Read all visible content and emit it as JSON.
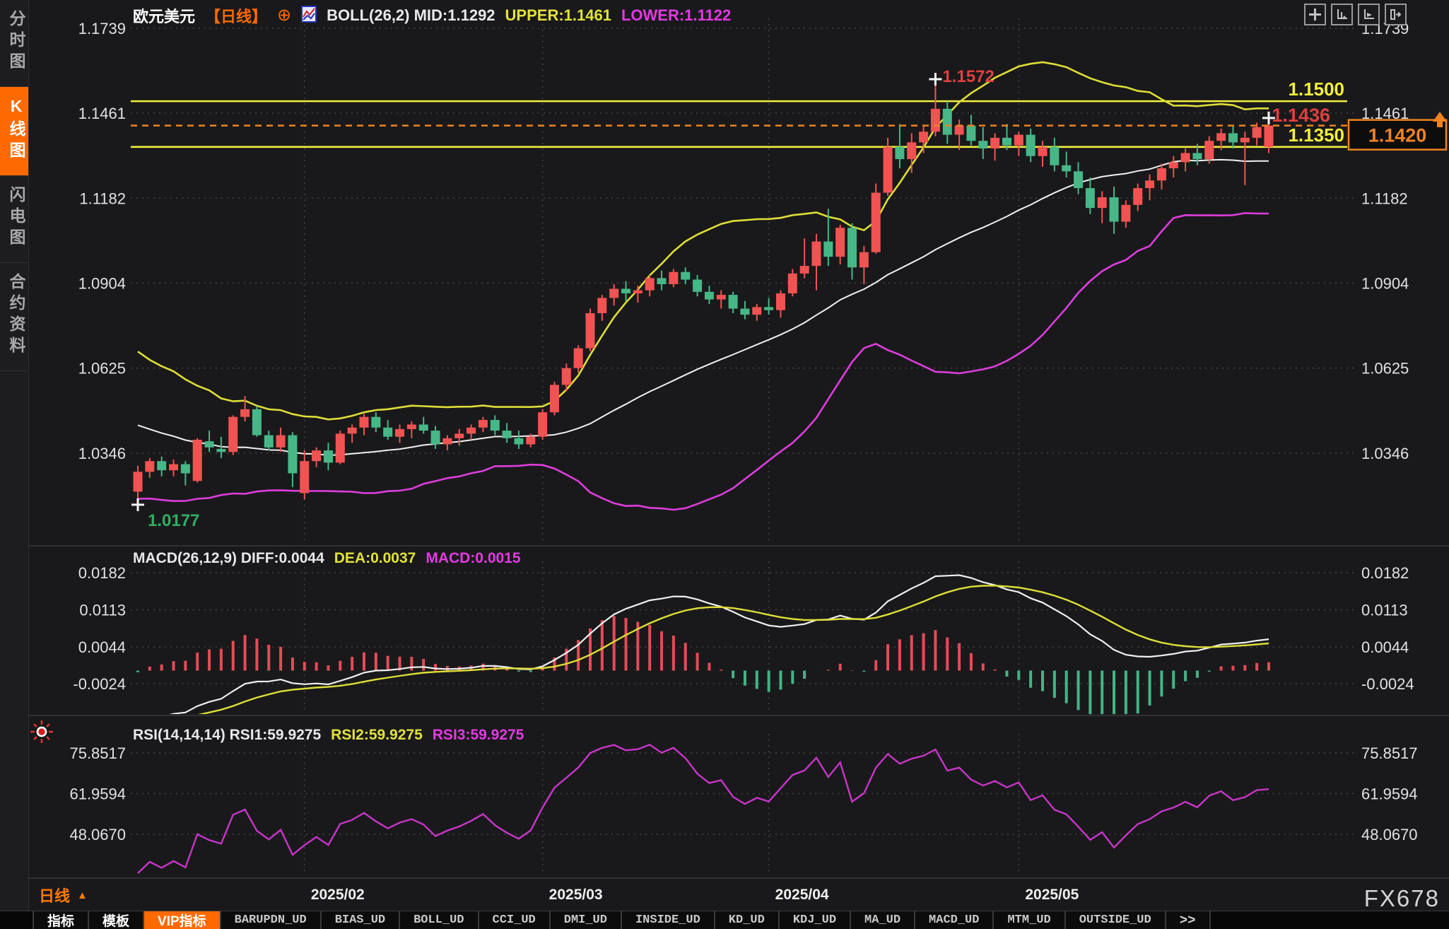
{
  "app": {
    "sidebar": {
      "items": [
        {
          "label": "分时图",
          "active": false
        },
        {
          "label": "K线图",
          "active": true
        },
        {
          "label": "闪电图",
          "active": false
        },
        {
          "label": "合约资料",
          "active": false
        }
      ]
    },
    "header": {
      "symbol": "欧元美元",
      "period_tag": "【日线】",
      "boll_mid_label": "BOLL(26,2) MID:1.1292",
      "upper_label": "UPPER:1.1461",
      "lower_label": "LOWER:1.1122"
    },
    "macd_header": {
      "white_label": "MACD(26,12,9) DIFF:0.0044",
      "dea_label": "DEA:0.0037",
      "macd_label": "MACD:0.0015"
    },
    "rsi_header": {
      "white_label": "RSI(14,14,14) RSI1:59.9275",
      "rsi2_label": "RSI2:59.9275",
      "rsi3_label": "RSI3:59.9275"
    },
    "bottom_period": "日线",
    "watermark": "FX678",
    "tabs": [
      {
        "label": "指标",
        "kind": "cjk",
        "active": false
      },
      {
        "label": "模板",
        "kind": "cjk",
        "active": false
      },
      {
        "label": "VIP指标",
        "kind": "cjk",
        "active": true
      },
      {
        "label": "BARUPDN_UD",
        "kind": "mono",
        "active": false
      },
      {
        "label": "BIAS_UD",
        "kind": "mono",
        "active": false
      },
      {
        "label": "BOLL_UD",
        "kind": "mono",
        "active": false
      },
      {
        "label": "CCI_UD",
        "kind": "mono",
        "active": false
      },
      {
        "label": "DMI_UD",
        "kind": "mono",
        "active": false
      },
      {
        "label": "INSIDE_UD",
        "kind": "mono",
        "active": false
      },
      {
        "label": "KD_UD",
        "kind": "mono",
        "active": false
      },
      {
        "label": "KDJ_UD",
        "kind": "mono",
        "active": false
      },
      {
        "label": "MA_UD",
        "kind": "mono",
        "active": false
      },
      {
        "label": "MACD_UD",
        "kind": "mono",
        "active": false
      },
      {
        "label": "MTM_UD",
        "kind": "mono",
        "active": false
      },
      {
        "label": "OUTSIDE_UD",
        "kind": "mono",
        "active": false
      },
      {
        "label": ">>",
        "kind": "more",
        "active": false
      }
    ]
  },
  "chart_data": [
    {
      "type": "candlestick",
      "title": "欧元美元 日线 (EUR/USD daily)",
      "indicator": "BOLL(26,2)",
      "boll": {
        "period": 26,
        "dev": 2,
        "mid": 1.1292,
        "upper": 1.1461,
        "lower": 1.1122
      },
      "up_color": "#f15352",
      "down_color": "#47b787",
      "upper_color": "#dede38",
      "mid_color": "#f0f0f0",
      "lower_color": "#dd3ddd",
      "y_ticks": [
        1.1739,
        1.1461,
        1.1182,
        1.0904,
        1.0625,
        1.0346
      ],
      "x_ticks": [
        {
          "label": "2025/02",
          "candle_index": 14
        },
        {
          "label": "2025/03",
          "candle_index": 34
        },
        {
          "label": "2025/04",
          "candle_index": 53
        },
        {
          "label": "2025/05",
          "candle_index": 74
        }
      ],
      "hlines": [
        {
          "value": 1.15,
          "label": "1.1500",
          "color": "#f3ef3d"
        },
        {
          "value": 1.135,
          "label": "1.1350",
          "color": "#f3ef3d"
        }
      ],
      "last_price": {
        "value": 1.142,
        "label": "1.1420",
        "color": "#ef8322"
      },
      "price_flag": {
        "value": 1.1436,
        "label": "1.1436",
        "color": "#e04040"
      },
      "annotations": [
        {
          "type": "high",
          "label": "1.1572",
          "value": 1.1572,
          "candle_index": 67,
          "color": "#e04040"
        },
        {
          "type": "low",
          "label": "1.0177",
          "value": 1.0177,
          "candle_index": 0,
          "color": "#2fae62"
        },
        {
          "type": "cross",
          "label": "",
          "value": 1.1445,
          "candle_index": 95,
          "color": "#ffffff"
        }
      ],
      "ohlc": [
        [
          1.022,
          1.0305,
          1.0177,
          1.0285
        ],
        [
          1.0285,
          1.033,
          1.0265,
          1.032
        ],
        [
          1.032,
          1.0335,
          1.027,
          1.029
        ],
        [
          1.029,
          1.0325,
          1.027,
          1.031
        ],
        [
          1.031,
          1.032,
          1.024,
          1.028
        ],
        [
          1.0255,
          1.0395,
          1.025,
          1.039
        ],
        [
          1.0385,
          1.042,
          1.035,
          1.0365
        ],
        [
          1.036,
          1.04,
          1.033,
          1.035
        ],
        [
          1.035,
          1.047,
          1.034,
          1.0465
        ],
        [
          1.0465,
          1.0533,
          1.045,
          1.049
        ],
        [
          1.049,
          1.05,
          1.04,
          1.0405
        ],
        [
          1.0405,
          1.042,
          1.0355,
          1.0365
        ],
        [
          1.0365,
          1.043,
          1.035,
          1.0405
        ],
        [
          1.0405,
          1.0415,
          1.0235,
          1.028
        ],
        [
          1.0215,
          1.0355,
          1.0195,
          1.032
        ],
        [
          1.032,
          1.0365,
          1.03,
          1.0355
        ],
        [
          1.0355,
          1.038,
          1.029,
          1.0315
        ],
        [
          1.0315,
          1.042,
          1.031,
          1.041
        ],
        [
          1.041,
          1.044,
          1.038,
          1.043
        ],
        [
          1.043,
          1.0475,
          1.0405,
          1.0465
        ],
        [
          1.0465,
          1.048,
          1.0415,
          1.043
        ],
        [
          1.043,
          1.0455,
          1.039,
          1.04
        ],
        [
          1.04,
          1.044,
          1.038,
          1.0425
        ],
        [
          1.0425,
          1.045,
          1.0395,
          1.044
        ],
        [
          1.044,
          1.0465,
          1.041,
          1.042
        ],
        [
          1.042,
          1.0435,
          1.036,
          1.0375
        ],
        [
          1.0375,
          1.0405,
          1.0355,
          1.0395
        ],
        [
          1.0395,
          1.0425,
          1.037,
          1.041
        ],
        [
          1.041,
          1.044,
          1.039,
          1.043
        ],
        [
          1.043,
          1.0465,
          1.0415,
          1.0455
        ],
        [
          1.0455,
          1.047,
          1.0405,
          1.042
        ],
        [
          1.042,
          1.0445,
          1.038,
          1.0395
        ],
        [
          1.0395,
          1.042,
          1.036,
          1.0375
        ],
        [
          1.0375,
          1.041,
          1.0365,
          1.04
        ],
        [
          1.04,
          1.049,
          1.039,
          1.048
        ],
        [
          1.048,
          1.058,
          1.047,
          1.057
        ],
        [
          1.057,
          1.064,
          1.055,
          1.0625
        ],
        [
          1.0625,
          1.07,
          1.061,
          1.069
        ],
        [
          1.069,
          1.082,
          1.068,
          1.0805
        ],
        [
          1.0805,
          1.0865,
          1.078,
          1.0855
        ],
        [
          1.0855,
          1.09,
          1.083,
          1.0885
        ],
        [
          1.0885,
          1.091,
          1.0845,
          1.087
        ],
        [
          1.087,
          1.0895,
          1.084,
          1.088
        ],
        [
          1.088,
          1.093,
          1.086,
          1.092
        ],
        [
          1.092,
          1.0945,
          1.088,
          1.09
        ],
        [
          1.09,
          1.095,
          1.089,
          1.094
        ],
        [
          1.094,
          1.0955,
          1.09,
          1.0915
        ],
        [
          1.0915,
          1.093,
          1.086,
          1.0875
        ],
        [
          1.0875,
          1.0895,
          1.0835,
          1.085
        ],
        [
          1.085,
          1.088,
          1.082,
          1.0865
        ],
        [
          1.0865,
          1.0875,
          1.0805,
          1.082
        ],
        [
          1.082,
          1.0845,
          1.0785,
          1.08
        ],
        [
          1.08,
          1.0835,
          1.078,
          1.0825
        ],
        [
          1.0825,
          1.0855,
          1.08,
          1.0815
        ],
        [
          1.0815,
          1.088,
          1.079,
          1.087
        ],
        [
          1.087,
          1.095,
          1.086,
          1.0935
        ],
        [
          1.0935,
          1.105,
          1.092,
          1.096
        ],
        [
          1.096,
          1.1065,
          1.088,
          1.104
        ],
        [
          1.104,
          1.1147,
          1.096,
          1.099
        ],
        [
          1.099,
          1.1095,
          1.0965,
          1.1085
        ],
        [
          1.1085,
          1.11,
          1.0915,
          1.0955
        ],
        [
          1.0955,
          1.1025,
          1.09,
          1.1005
        ],
        [
          1.1005,
          1.123,
          1.1,
          1.12
        ],
        [
          1.12,
          1.138,
          1.119,
          1.135
        ],
        [
          1.135,
          1.1425,
          1.128,
          1.131
        ],
        [
          1.131,
          1.1395,
          1.1265,
          1.1365
        ],
        [
          1.1365,
          1.142,
          1.133,
          1.14
        ],
        [
          1.14,
          1.1572,
          1.1385,
          1.1475
        ],
        [
          1.1475,
          1.15,
          1.136,
          1.139
        ],
        [
          1.139,
          1.144,
          1.134,
          1.142
        ],
        [
          1.142,
          1.1455,
          1.1355,
          1.137
        ],
        [
          1.137,
          1.1415,
          1.131,
          1.1345
        ],
        [
          1.1345,
          1.1395,
          1.1305,
          1.138
        ],
        [
          1.138,
          1.1425,
          1.134,
          1.1355
        ],
        [
          1.1355,
          1.14,
          1.132,
          1.139
        ],
        [
          1.139,
          1.141,
          1.13,
          1.132
        ],
        [
          1.132,
          1.137,
          1.1285,
          1.135
        ],
        [
          1.135,
          1.138,
          1.127,
          1.129
        ],
        [
          1.129,
          1.1335,
          1.125,
          1.127
        ],
        [
          1.127,
          1.13,
          1.1195,
          1.1215
        ],
        [
          1.1215,
          1.125,
          1.113,
          1.115
        ],
        [
          1.115,
          1.1205,
          1.11,
          1.1185
        ],
        [
          1.1185,
          1.122,
          1.1065,
          1.1105
        ],
        [
          1.1105,
          1.1175,
          1.1085,
          1.116
        ],
        [
          1.116,
          1.123,
          1.114,
          1.1215
        ],
        [
          1.1215,
          1.126,
          1.1175,
          1.124
        ],
        [
          1.124,
          1.1295,
          1.121,
          1.128
        ],
        [
          1.128,
          1.132,
          1.125,
          1.13
        ],
        [
          1.13,
          1.1345,
          1.127,
          1.133
        ],
        [
          1.133,
          1.136,
          1.129,
          1.131
        ],
        [
          1.131,
          1.1385,
          1.1295,
          1.137
        ],
        [
          1.137,
          1.141,
          1.134,
          1.1395
        ],
        [
          1.1395,
          1.142,
          1.1345,
          1.1365
        ],
        [
          1.1365,
          1.14,
          1.1225,
          1.138
        ],
        [
          1.138,
          1.143,
          1.1355,
          1.1415
        ],
        [
          1.135,
          1.1445,
          1.133,
          1.142
        ]
      ]
    },
    {
      "type": "macd",
      "params": [
        26,
        12,
        9
      ],
      "diff": 0.0044,
      "dea": 0.0037,
      "macd": 0.0015,
      "y_ticks": [
        0.0182,
        0.0113,
        0.0044,
        -0.0024
      ],
      "diff_color": "#f0f0f0",
      "dea_color": "#dede38",
      "hist_pos_color": "#e64b56",
      "hist_neg_color": "#43b586"
    },
    {
      "type": "line",
      "title": "RSI(14,14,14)",
      "rsi1": 59.9275,
      "rsi2": 59.9275,
      "rsi3": 59.9275,
      "y_ticks": [
        75.8517,
        61.9594,
        48.067
      ],
      "color": "#c835c8"
    }
  ]
}
